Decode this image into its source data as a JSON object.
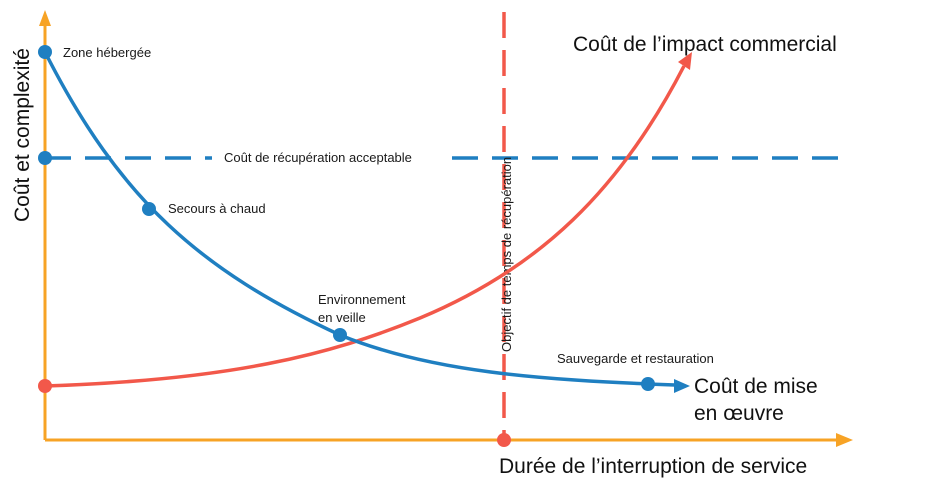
{
  "colors": {
    "axis": "#f7a325",
    "impl_cost": "#1f7fc1",
    "business_cost": "#f2584a",
    "dashed_acceptable": "#1f7fc1",
    "rto_line": "#f2584a"
  },
  "axes": {
    "y_label": "Coût et complexité",
    "x_label": "Durée de l’interruption de service"
  },
  "curves": {
    "business_impact_label": "Coût de l’impact commercial",
    "implementation_label_line1": "Coût de mise",
    "implementation_label_line2": "en œuvre"
  },
  "acceptable_cost_label": "Coût de récupération acceptable",
  "rto_label": "Objectif de temps de récupération",
  "points": {
    "hosted_zone": "Zone hébergée",
    "hot_standby": "Secours à chaud",
    "standby_env_line1": "Environnement",
    "standby_env_line2": "en veille",
    "backup_restore": "Sauvegarde et restauration"
  }
}
